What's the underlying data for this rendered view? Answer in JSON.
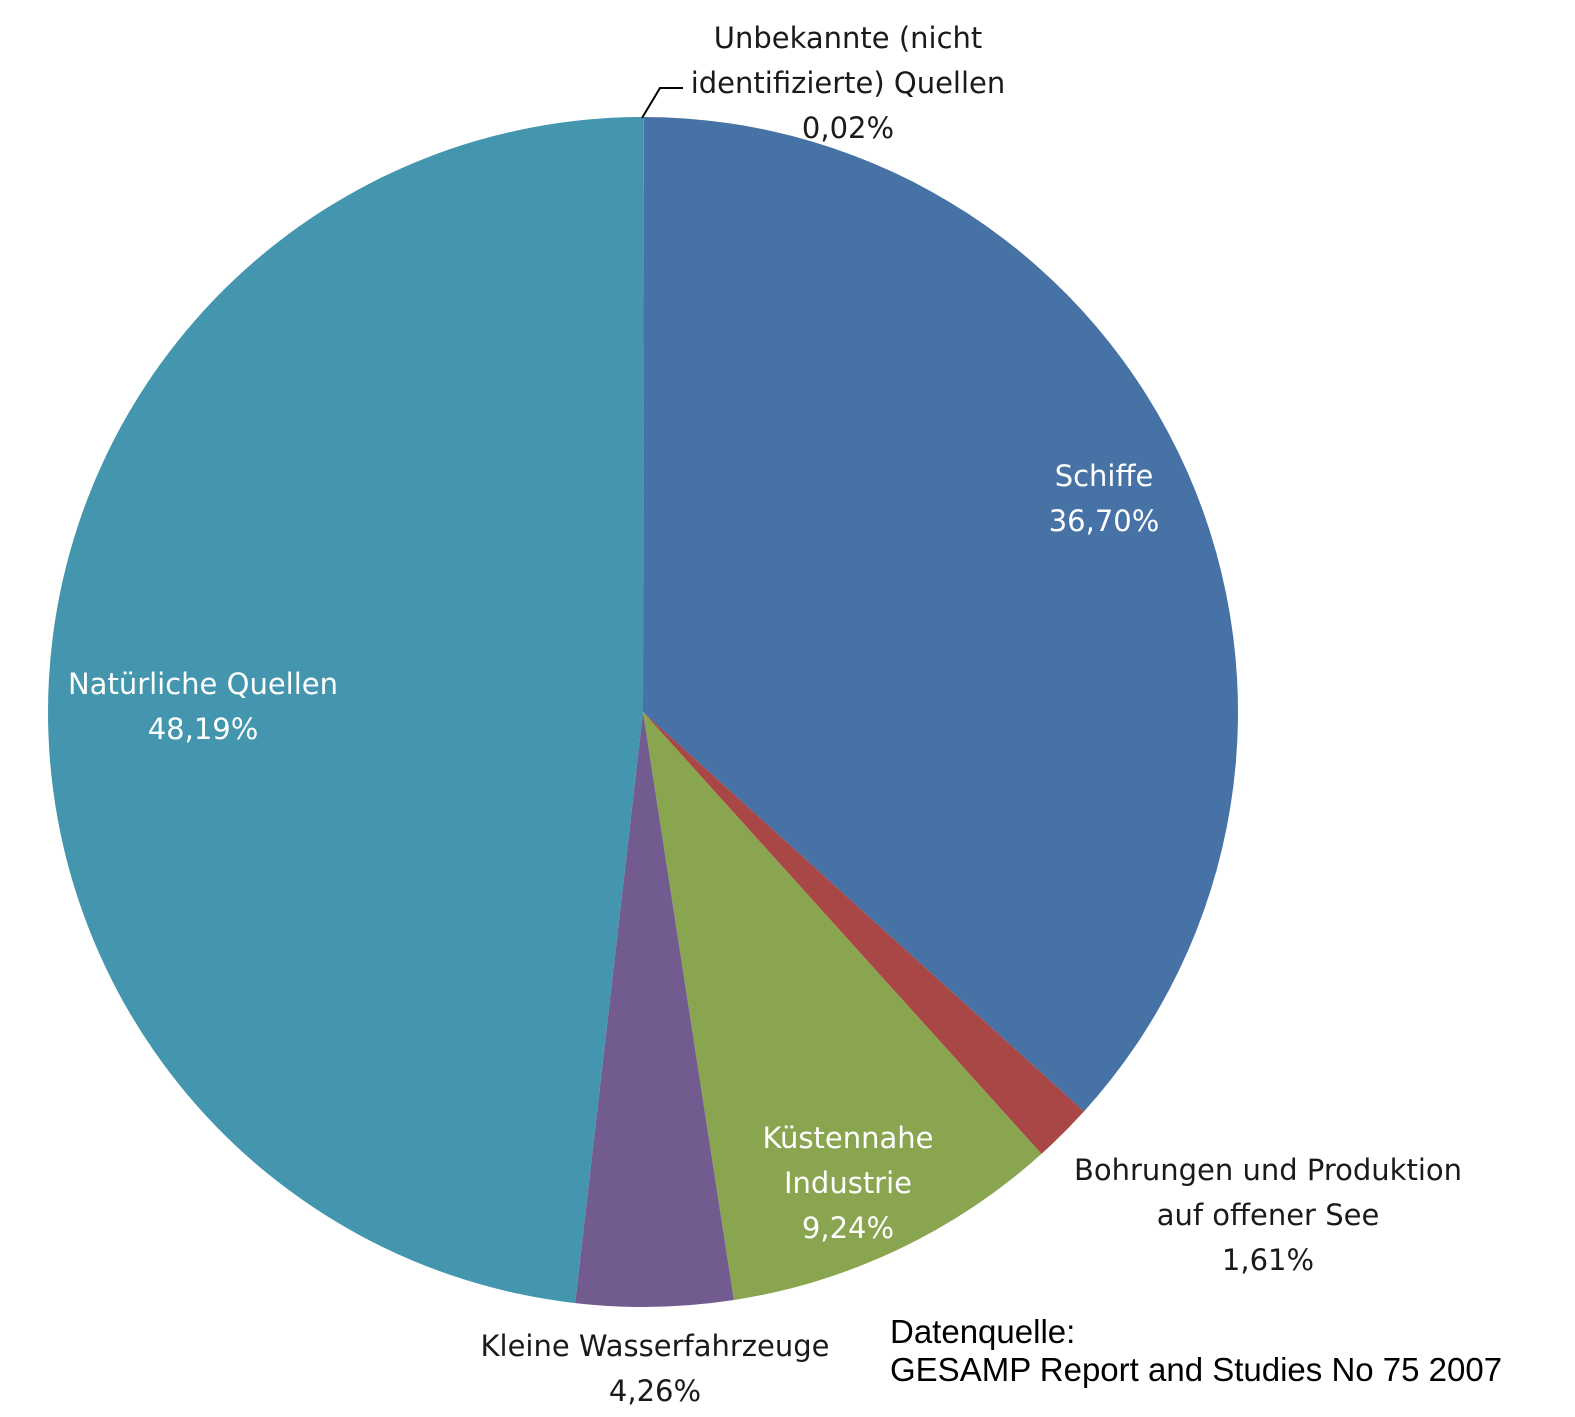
{
  "chart_data": {
    "type": "pie",
    "start_angle_deg": 0,
    "direction": "clockwise",
    "slices": [
      {
        "name": "Unbekannte (nicht identifizierte) Quellen",
        "label_lines": [
          "Unbekannte (nicht",
          "identifizierte) Quellen"
        ],
        "value_label": "0,02%",
        "value": 0.02,
        "color": "#8a8a8a"
      },
      {
        "name": "Schiffe",
        "label_lines": [
          "Schiffe"
        ],
        "value_label": "36,70%",
        "value": 36.7,
        "color": "#4672a6"
      },
      {
        "name": "Bohrungen und Produktion auf offener See",
        "label_lines": [
          "Bohrungen und Produktion",
          "auf offener See"
        ],
        "value_label": "1,61%",
        "value": 1.61,
        "color": "#a84745"
      },
      {
        "name": "Küstennahe Industrie",
        "label_lines": [
          "Küstennahe",
          "Industrie"
        ],
        "value_label": "9,24%",
        "value": 9.24,
        "color": "#8aa550"
      },
      {
        "name": "Kleine Wasserfahrzeuge",
        "label_lines": [
          "Kleine Wasserfahrzeuge"
        ],
        "value_label": "4,26%",
        "value": 4.26,
        "color": "#725b8f"
      },
      {
        "name": "Natürliche Quellen",
        "label_lines": [
          "Natürliche Quellen"
        ],
        "value_label": "48,19%",
        "value": 48.19,
        "color": "#4396ae"
      }
    ]
  },
  "source": {
    "line1": "Datenquelle:",
    "line2": "GESAMP Report and Studies No 75 2007"
  }
}
